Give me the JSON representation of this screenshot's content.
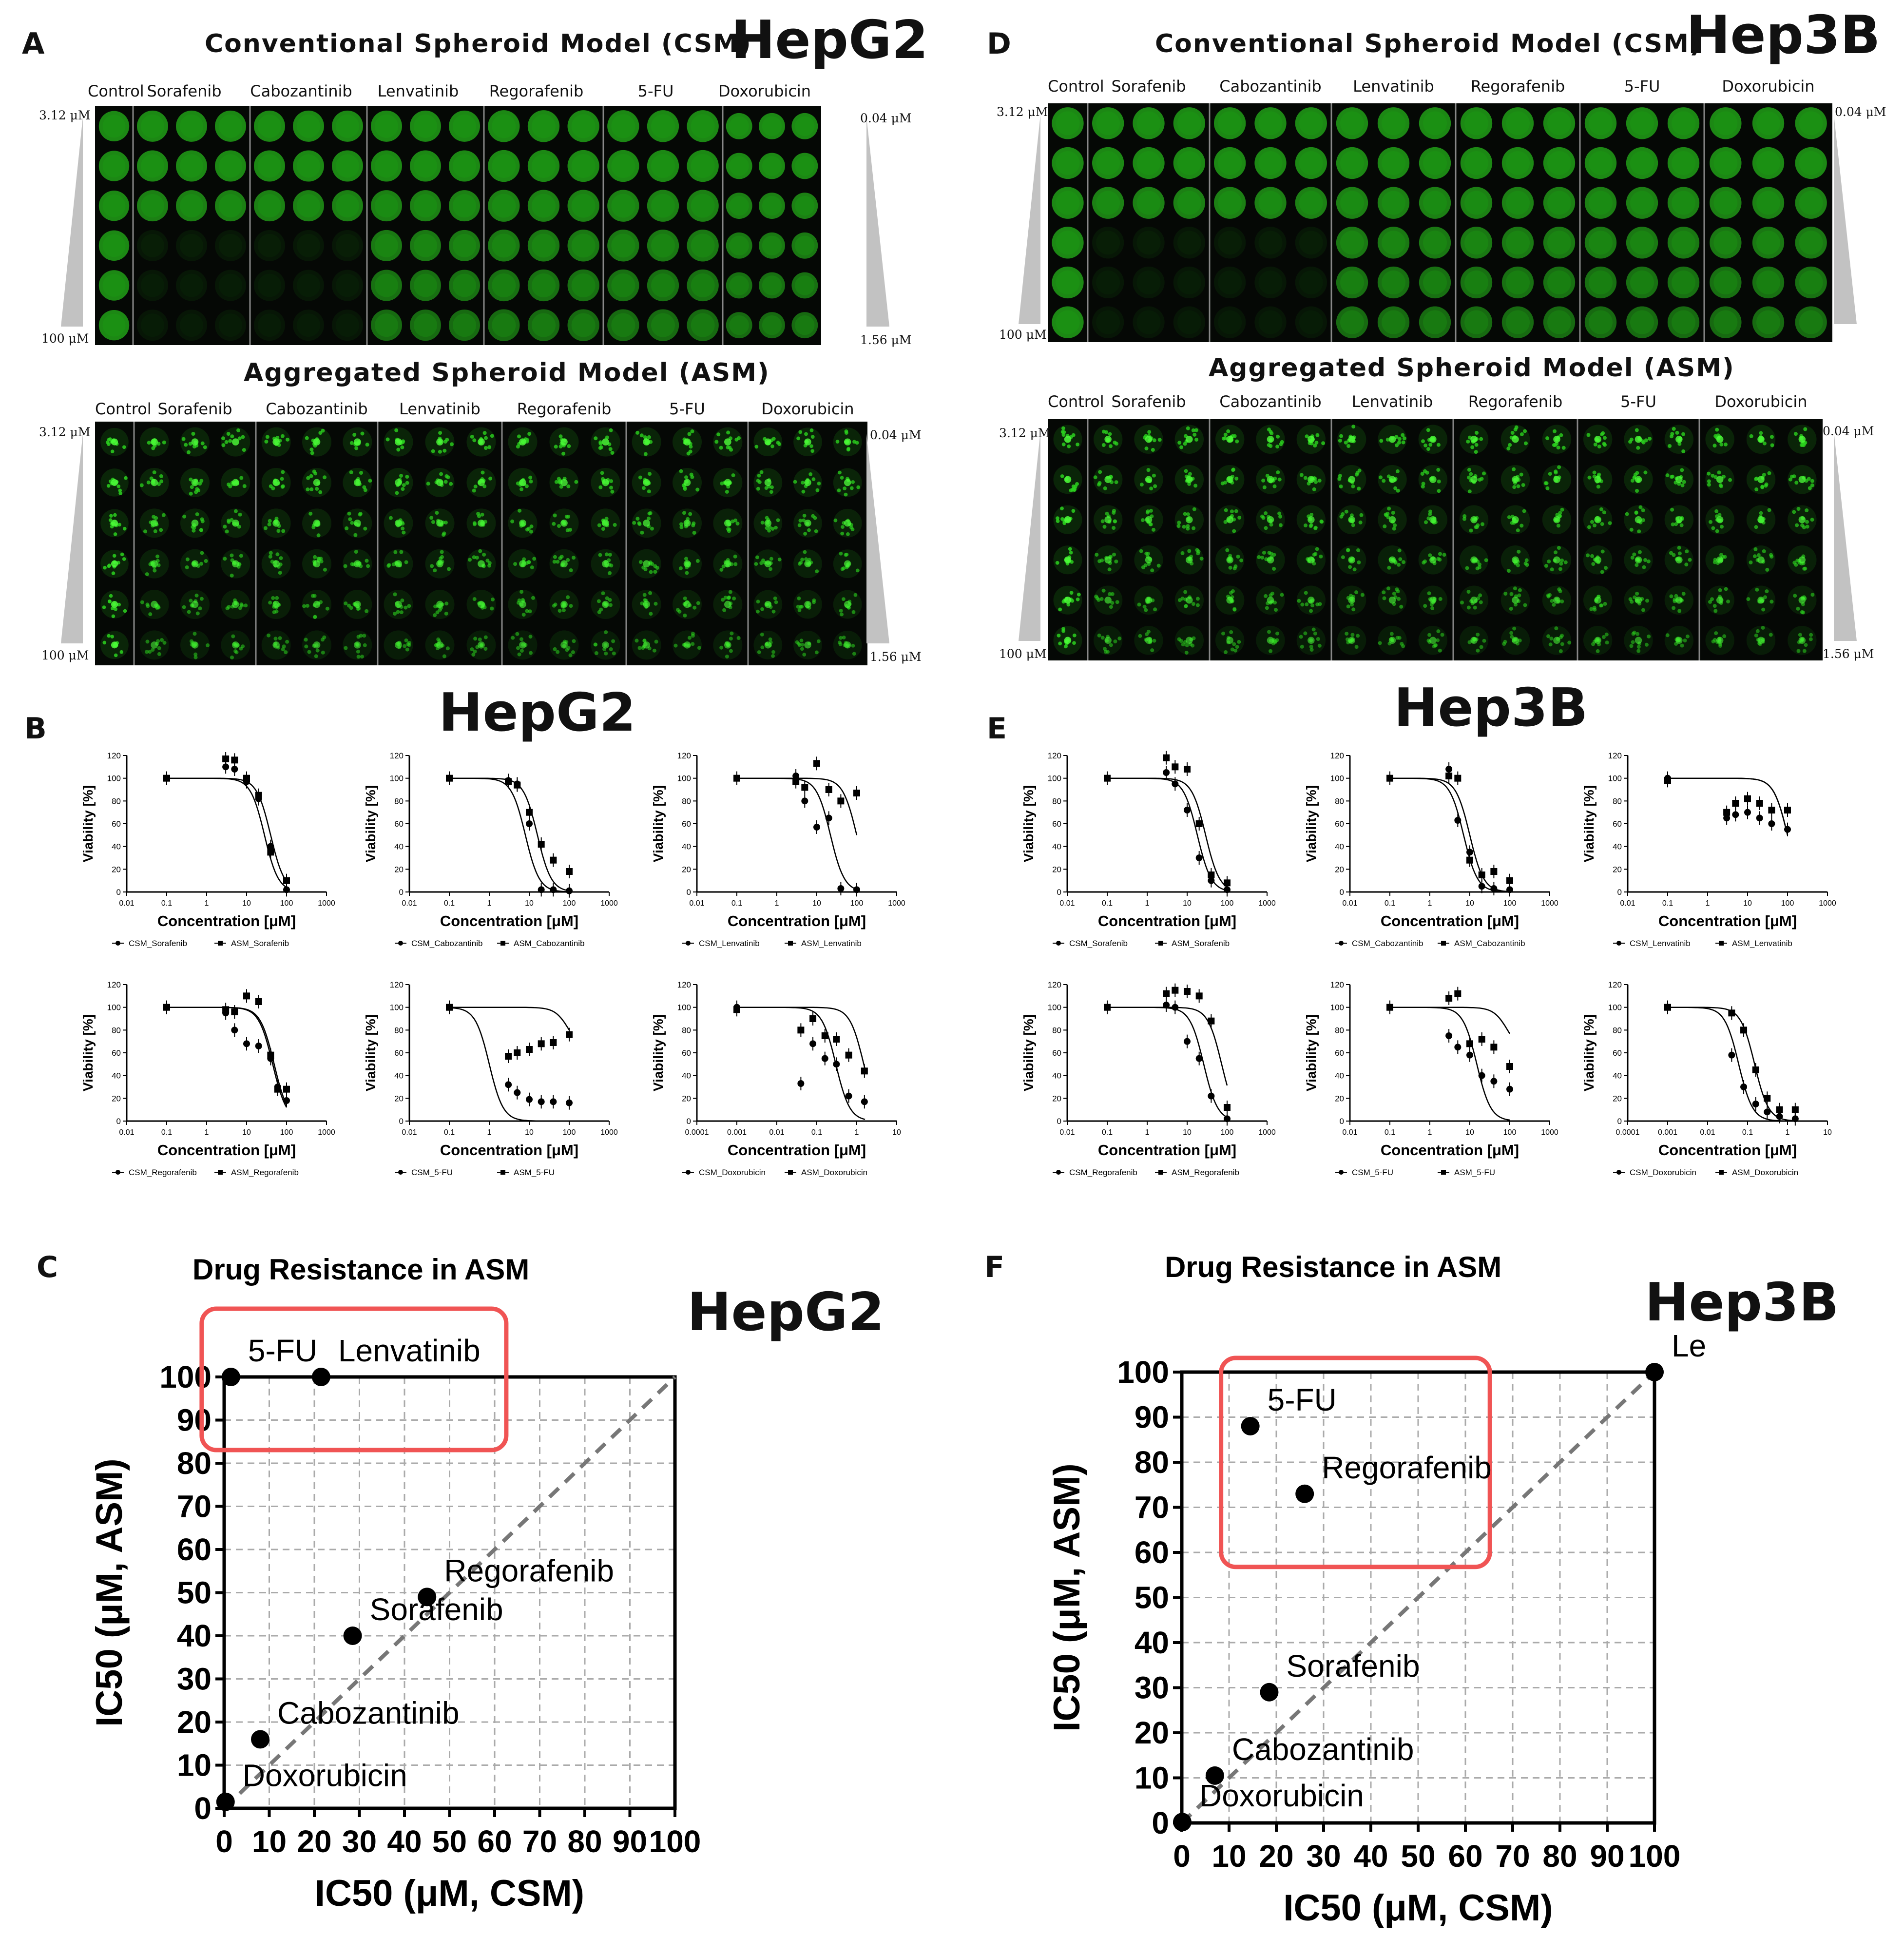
{
  "panels": {
    "A": {
      "letter": "A",
      "cell_line": "HepG2"
    },
    "B": {
      "letter": "B",
      "cell_line": "HepG2"
    },
    "C": {
      "letter": "C",
      "cell_line": "HepG2"
    },
    "D": {
      "letter": "D",
      "cell_line": "Hep3B"
    },
    "E": {
      "letter": "E",
      "cell_line": "Hep3B"
    },
    "F": {
      "letter": "F",
      "cell_line": "Hep3B"
    }
  },
  "image_panels": {
    "csm_title": "Conventional Spheroid Model (CSM)",
    "asm_title": "Aggregated Spheroid Model (ASM)",
    "columns": [
      "Control",
      "Sorafenib",
      "Cabozantinib",
      "Lenvatinib",
      "Regorafenib",
      "5-FU",
      "Doxorubicin"
    ],
    "conc_top_left": "3.12 μM",
    "conc_bottom_left": "100 μM",
    "conc_top_right": "0.04 μM",
    "conc_bottom_right": "1.56 μM",
    "well_color": "#2bd11e",
    "background_color": "#050805"
  },
  "curve_labels": {
    "y_label": "Viability [%]",
    "x_label": "Concentration [μM]",
    "y_ticks": [
      "0",
      "20",
      "40",
      "60",
      "80",
      "100",
      "120"
    ]
  },
  "chart_data": [
    {
      "id": "HepG2_Sorafenib",
      "type": "line",
      "title": "",
      "xlabel": "Concentration [μM]",
      "ylabel": "Viability [%]",
      "x_ticks": [
        "0.01",
        "0.1",
        "1",
        "10",
        "100",
        "1000"
      ],
      "ylim": [
        0,
        120
      ],
      "legend": [
        "CSM_Sorafenib",
        "ASM_Sorafenib"
      ],
      "series": [
        {
          "name": "CSM_Sorafenib",
          "x": [
            0.1,
            3,
            5,
            10,
            20,
            40,
            100
          ],
          "y": [
            100,
            110,
            108,
            97,
            82,
            40,
            2
          ],
          "ic50": 28
        },
        {
          "name": "ASM_Sorafenib",
          "x": [
            0.1,
            3,
            5,
            10,
            20,
            40,
            100
          ],
          "y": [
            100,
            117,
            116,
            100,
            85,
            35,
            10
          ],
          "ic50": 40
        }
      ]
    },
    {
      "id": "HepG2_Cabozantinib",
      "type": "line",
      "title": "",
      "xlabel": "Concentration [μM]",
      "ylabel": "Viability [%]",
      "x_ticks": [
        "0.01",
        "0.1",
        "1",
        "10",
        "100",
        "1000"
      ],
      "ylim": [
        0,
        120
      ],
      "legend": [
        "CSM_Cabozantinib",
        "ASM_Cabozantinib"
      ],
      "series": [
        {
          "name": "CSM_Cabozantinib",
          "x": [
            0.1,
            3,
            5,
            10,
            20,
            40,
            100
          ],
          "y": [
            100,
            98,
            95,
            60,
            2,
            2,
            1
          ],
          "ic50": 8
        },
        {
          "name": "ASM_Cabozantinib",
          "x": [
            0.1,
            3,
            5,
            10,
            20,
            40,
            100
          ],
          "y": [
            100,
            97,
            94,
            70,
            42,
            28,
            18
          ],
          "ic50": 16
        }
      ]
    },
    {
      "id": "HepG2_Lenvatinib",
      "type": "line",
      "title": "",
      "xlabel": "Concentration [μM]",
      "ylabel": "Viability [%]",
      "x_ticks": [
        "0.01",
        "0.1",
        "1",
        "10",
        "100",
        "1000"
      ],
      "ylim": [
        0,
        120
      ],
      "legend": [
        "CSM_Lenvatinib",
        "ASM_Lenvatinib"
      ],
      "series": [
        {
          "name": "CSM_Lenvatinib",
          "x": [
            0.1,
            3,
            5,
            10,
            20,
            40,
            100
          ],
          "y": [
            100,
            102,
            80,
            57,
            65,
            3,
            2
          ],
          "ic50": 22
        },
        {
          "name": "ASM_Lenvatinib",
          "x": [
            0.1,
            3,
            5,
            10,
            20,
            40,
            100
          ],
          "y": [
            100,
            97,
            92,
            113,
            90,
            80,
            87
          ],
          "ic50": 100
        }
      ]
    },
    {
      "id": "HepG2_Regorafenib",
      "type": "line",
      "title": "",
      "xlabel": "Concentration [μM]",
      "ylabel": "Viability [%]",
      "x_ticks": [
        "0.01",
        "0.1",
        "1",
        "10",
        "100",
        "1000"
      ],
      "ylim": [
        0,
        120
      ],
      "legend": [
        "CSM_Regorafenib",
        "ASM_Regorafenib"
      ],
      "series": [
        {
          "name": "CSM_Regorafenib",
          "x": [
            0.1,
            3,
            5,
            10,
            20,
            40,
            60,
            100
          ],
          "y": [
            100,
            95,
            80,
            68,
            66,
            55,
            30,
            18
          ],
          "ic50": 45
        },
        {
          "name": "ASM_Regorafenib",
          "x": [
            0.1,
            3,
            5,
            10,
            20,
            40,
            60,
            100
          ],
          "y": [
            100,
            98,
            96,
            110,
            105,
            58,
            28,
            28
          ],
          "ic50": 49
        }
      ]
    },
    {
      "id": "HepG2_5FU",
      "type": "line",
      "title": "",
      "xlabel": "Concentration [μM]",
      "ylabel": "Viability [%]",
      "x_ticks": [
        "0.01",
        "0.1",
        "1",
        "10",
        "100",
        "1000"
      ],
      "ylim": [
        0,
        120
      ],
      "legend": [
        "CSM_5-FU",
        "ASM_5-FU"
      ],
      "series": [
        {
          "name": "CSM_5-FU",
          "x": [
            0.1,
            3,
            5,
            10,
            20,
            40,
            100
          ],
          "y": [
            100,
            32,
            25,
            19,
            17,
            17,
            16
          ],
          "ic50": 1
        },
        {
          "name": "ASM_5-FU",
          "x": [
            0.1,
            3,
            5,
            10,
            20,
            40,
            100
          ],
          "y": [
            100,
            57,
            60,
            63,
            68,
            69,
            76
          ],
          "ic50": 100
        }
      ]
    },
    {
      "id": "HepG2_Doxorubicin",
      "type": "line",
      "title": "",
      "xlabel": "Concentration [μM]",
      "ylabel": "Viability [%]",
      "x_ticks": [
        "0.0001",
        "0.001",
        "0.01",
        "0.1",
        "1",
        "10"
      ],
      "ylim": [
        0,
        120
      ],
      "legend": [
        "CSM_Doxorubicin",
        "ASM_Doxorubicin"
      ],
      "series": [
        {
          "name": "CSM_Doxorubicin",
          "x": [
            0.001,
            0.04,
            0.08,
            0.16,
            0.31,
            0.63,
            1.56
          ],
          "y": [
            100,
            33,
            68,
            55,
            50,
            22,
            17
          ],
          "ic50": 0.3
        },
        {
          "name": "ASM_Doxorubicin",
          "x": [
            0.001,
            0.04,
            0.08,
            0.16,
            0.31,
            0.63,
            1.56
          ],
          "y": [
            98,
            80,
            90,
            75,
            72,
            58,
            44
          ],
          "ic50": 1.5
        }
      ]
    },
    {
      "id": "Hep3B_Sorafenib",
      "type": "line",
      "title": "",
      "xlabel": "Concentration [μM]",
      "ylabel": "Viability [%]",
      "x_ticks": [
        "0.01",
        "0.1",
        "1",
        "10",
        "100",
        "1000"
      ],
      "ylim": [
        0,
        120
      ],
      "legend": [
        "CSM_Sorafenib",
        "ASM_Sorafenib"
      ],
      "series": [
        {
          "name": "CSM_Sorafenib",
          "x": [
            0.1,
            3,
            5,
            10,
            20,
            40,
            100
          ],
          "y": [
            100,
            105,
            95,
            72,
            30,
            10,
            2
          ],
          "ic50": 18
        },
        {
          "name": "ASM_Sorafenib",
          "x": [
            0.1,
            3,
            5,
            10,
            20,
            40,
            100
          ],
          "y": [
            100,
            118,
            110,
            108,
            60,
            15,
            8
          ],
          "ic50": 29
        }
      ]
    },
    {
      "id": "Hep3B_Cabozantinib",
      "type": "line",
      "title": "",
      "xlabel": "Concentration [μM]",
      "ylabel": "Viability [%]",
      "x_ticks": [
        "0.01",
        "0.1",
        "1",
        "10",
        "100",
        "1000"
      ],
      "ylim": [
        0,
        120
      ],
      "legend": [
        "CSM_Cabozantinib",
        "ASM_Cabozantinib"
      ],
      "series": [
        {
          "name": "CSM_Cabozantinib",
          "x": [
            0.1,
            3,
            5,
            10,
            20,
            40,
            100
          ],
          "y": [
            100,
            108,
            63,
            35,
            5,
            3,
            2
          ],
          "ic50": 7
        },
        {
          "name": "ASM_Cabozantinib",
          "x": [
            0.1,
            3,
            5,
            10,
            20,
            40,
            100
          ],
          "y": [
            100,
            102,
            100,
            28,
            15,
            18,
            10
          ],
          "ic50": 10
        }
      ]
    },
    {
      "id": "Hep3B_Lenvatinib",
      "type": "line",
      "title": "",
      "xlabel": "Concentration [μM]",
      "ylabel": "Viability [%]",
      "x_ticks": [
        "0.01",
        "0.1",
        "1",
        "10",
        "100",
        "1000"
      ],
      "ylim": [
        0,
        120
      ],
      "legend": [
        "CSM_Lenvatinib",
        "ASM_Lenvatinib"
      ],
      "series": [
        {
          "name": "CSM_Lenvatinib",
          "x": [
            0.1,
            3,
            5,
            10,
            20,
            40,
            100
          ],
          "y": [
            100,
            65,
            68,
            70,
            65,
            60,
            55
          ],
          "ic50": 100
        },
        {
          "name": "ASM_Lenvatinib",
          "x": [
            0.1,
            3,
            5,
            10,
            20,
            40,
            100
          ],
          "y": [
            98,
            70,
            78,
            82,
            78,
            72,
            72
          ],
          "ic50": 100
        }
      ]
    },
    {
      "id": "Hep3B_Regorafenib",
      "type": "line",
      "title": "",
      "xlabel": "Concentration [μM]",
      "ylabel": "Viability [%]",
      "x_ticks": [
        "0.01",
        "0.1",
        "1",
        "10",
        "100",
        "1000"
      ],
      "ylim": [
        0,
        120
      ],
      "legend": [
        "CSM_Regorafenib",
        "ASM_Regorafenib"
      ],
      "series": [
        {
          "name": "CSM_Regorafenib",
          "x": [
            0.1,
            3,
            5,
            10,
            20,
            40,
            100
          ],
          "y": [
            100,
            102,
            100,
            70,
            55,
            22,
            2
          ],
          "ic50": 26
        },
        {
          "name": "ASM_Regorafenib",
          "x": [
            0.1,
            3,
            5,
            10,
            20,
            40,
            100
          ],
          "y": [
            100,
            112,
            115,
            114,
            110,
            88,
            12
          ],
          "ic50": 73
        }
      ]
    },
    {
      "id": "Hep3B_5FU",
      "type": "line",
      "title": "",
      "xlabel": "Concentration [μM]",
      "ylabel": "Viability [%]",
      "x_ticks": [
        "0.01",
        "0.1",
        "1",
        "10",
        "100",
        "1000"
      ],
      "ylim": [
        0,
        120
      ],
      "legend": [
        "CSM_5-FU",
        "ASM_5-FU"
      ],
      "series": [
        {
          "name": "CSM_5-FU",
          "x": [
            0.1,
            3,
            5,
            10,
            20,
            40,
            100
          ],
          "y": [
            100,
            75,
            65,
            58,
            40,
            35,
            28
          ],
          "ic50": 15
        },
        {
          "name": "ASM_5-FU",
          "x": [
            0.1,
            3,
            5,
            10,
            20,
            40,
            100
          ],
          "y": [
            100,
            108,
            112,
            68,
            72,
            65,
            48
          ],
          "ic50": 88
        }
      ]
    },
    {
      "id": "Hep3B_Doxorubicin",
      "type": "line",
      "title": "",
      "xlabel": "Concentration [μM]",
      "ylabel": "Viability [%]",
      "x_ticks": [
        "0.0001",
        "0.001",
        "0.01",
        "0.1",
        "1",
        "10"
      ],
      "ylim": [
        0,
        120
      ],
      "legend": [
        "CSM_Doxorubicin",
        "ASM_Doxorubicin"
      ],
      "series": [
        {
          "name": "CSM_Doxorubicin",
          "x": [
            0.001,
            0.04,
            0.08,
            0.16,
            0.31,
            0.63,
            1.56
          ],
          "y": [
            100,
            58,
            30,
            15,
            8,
            4,
            2
          ],
          "ic50": 0.06
        },
        {
          "name": "ASM_Doxorubicin",
          "x": [
            0.001,
            0.04,
            0.08,
            0.16,
            0.31,
            0.63,
            1.56
          ],
          "y": [
            100,
            95,
            80,
            45,
            20,
            10,
            10
          ],
          "ic50": 0.15
        }
      ]
    },
    {
      "id": "HepG2_resistance",
      "type": "scatter",
      "title": "Drug Resistance in ASM",
      "xlabel": "IC50 (μM, CSM)",
      "ylabel": "IC50 (μM, ASM)",
      "xlim": [
        0,
        100
      ],
      "ylim": [
        0,
        100
      ],
      "x_ticks": [
        "0",
        "10",
        "20",
        "30",
        "40",
        "50",
        "60",
        "70",
        "80",
        "90",
        "100"
      ],
      "y_ticks": [
        "0",
        "10",
        "20",
        "30",
        "40",
        "50",
        "60",
        "70",
        "80",
        "90",
        "100"
      ],
      "points": [
        {
          "label": "5-FU",
          "x": 1.5,
          "y": 100
        },
        {
          "label": "Lenvatinib",
          "x": 21.5,
          "y": 100
        },
        {
          "label": "Regorafenib",
          "x": 45,
          "y": 49
        },
        {
          "label": "Sorafenib",
          "x": 28.5,
          "y": 40
        },
        {
          "label": "Cabozantinib",
          "x": 8,
          "y": 16
        },
        {
          "label": "Doxorubicin",
          "x": 0.3,
          "y": 1.5
        }
      ],
      "highlight": [
        "5-FU",
        "Lenvatinib"
      ]
    },
    {
      "id": "Hep3B_resistance",
      "type": "scatter",
      "title": "Drug Resistance in ASM",
      "xlabel": "IC50 (μM, CSM)",
      "ylabel": "IC50 (μM, ASM)",
      "xlim": [
        0,
        100
      ],
      "ylim": [
        0,
        100
      ],
      "x_ticks": [
        "0",
        "10",
        "20",
        "30",
        "40",
        "50",
        "60",
        "70",
        "80",
        "90",
        "100"
      ],
      "y_ticks": [
        "0",
        "10",
        "20",
        "30",
        "40",
        "50",
        "60",
        "70",
        "80",
        "90",
        "100"
      ],
      "points": [
        {
          "label": "5-FU",
          "x": 14.5,
          "y": 88
        },
        {
          "label": "Regorafenib",
          "x": 26,
          "y": 73
        },
        {
          "label": "Lenvatinib",
          "x": 100,
          "y": 100
        },
        {
          "label": "Sorafenib",
          "x": 18.5,
          "y": 29
        },
        {
          "label": "Cabozantinib",
          "x": 7,
          "y": 10.5
        },
        {
          "label": "Doxorubicin",
          "x": 0.1,
          "y": 0.2
        }
      ],
      "highlight": [
        "5-FU",
        "Regorafenib"
      ]
    }
  ]
}
